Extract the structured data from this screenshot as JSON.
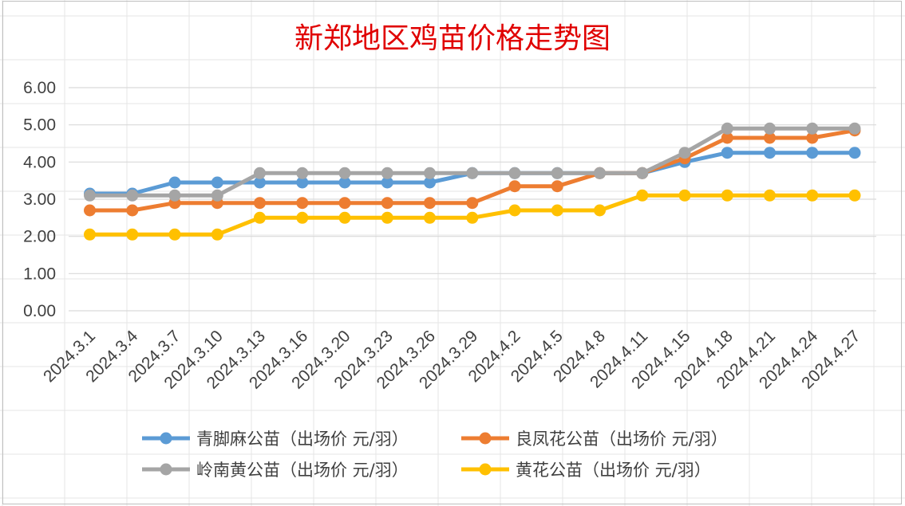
{
  "chart_data": {
    "type": "line",
    "title": "新郑地区鸡苗价格走势图",
    "categories": [
      "2024.3.1",
      "2024.3.4",
      "2024.3.7",
      "2024.3.10",
      "2024.3.13",
      "2024.3.16",
      "2024.3.20",
      "2024.3.23",
      "2024.3.26",
      "2024.3.29",
      "2024.4.2",
      "2024.4.5",
      "2024.4.8",
      "2024.4.11",
      "2024.4.15",
      "2024.4.18",
      "2024.4.21",
      "2024.4.24",
      "2024.4.27"
    ],
    "ylim": [
      0,
      6
    ],
    "yticks": [
      "0.00",
      "1.00",
      "2.00",
      "3.00",
      "4.00",
      "5.00",
      "6.00"
    ],
    "grid": true,
    "legend_position": "bottom",
    "series": [
      {
        "name": "青脚麻公苗（出场价 元/羽）",
        "color": "#5b9bd5",
        "values": [
          3.15,
          3.15,
          3.45,
          3.45,
          3.45,
          3.45,
          3.45,
          3.45,
          3.45,
          3.7,
          3.7,
          3.7,
          3.7,
          3.7,
          4.0,
          4.25,
          4.25,
          4.25,
          4.25
        ]
      },
      {
        "name": "良凤花公苗（出场价 元/羽）",
        "color": "#ed7d31",
        "values": [
          2.7,
          2.7,
          2.9,
          2.9,
          2.9,
          2.9,
          2.9,
          2.9,
          2.9,
          2.9,
          3.35,
          3.35,
          3.7,
          3.7,
          4.1,
          4.65,
          4.65,
          4.65,
          4.85
        ]
      },
      {
        "name": "岭南黄公苗（出场价 元/羽）",
        "color": "#a5a5a5",
        "values": [
          3.1,
          3.1,
          3.1,
          3.1,
          3.7,
          3.7,
          3.7,
          3.7,
          3.7,
          3.7,
          3.7,
          3.7,
          3.7,
          3.7,
          4.25,
          4.9,
          4.9,
          4.9,
          4.9
        ]
      },
      {
        "name": "黄花公苗（出场价 元/羽）",
        "color": "#ffc000",
        "values": [
          2.05,
          2.05,
          2.05,
          2.05,
          2.5,
          2.5,
          2.5,
          2.5,
          2.5,
          2.5,
          2.7,
          2.7,
          2.7,
          3.1,
          3.1,
          3.1,
          3.1,
          3.1,
          3.1
        ]
      }
    ]
  }
}
